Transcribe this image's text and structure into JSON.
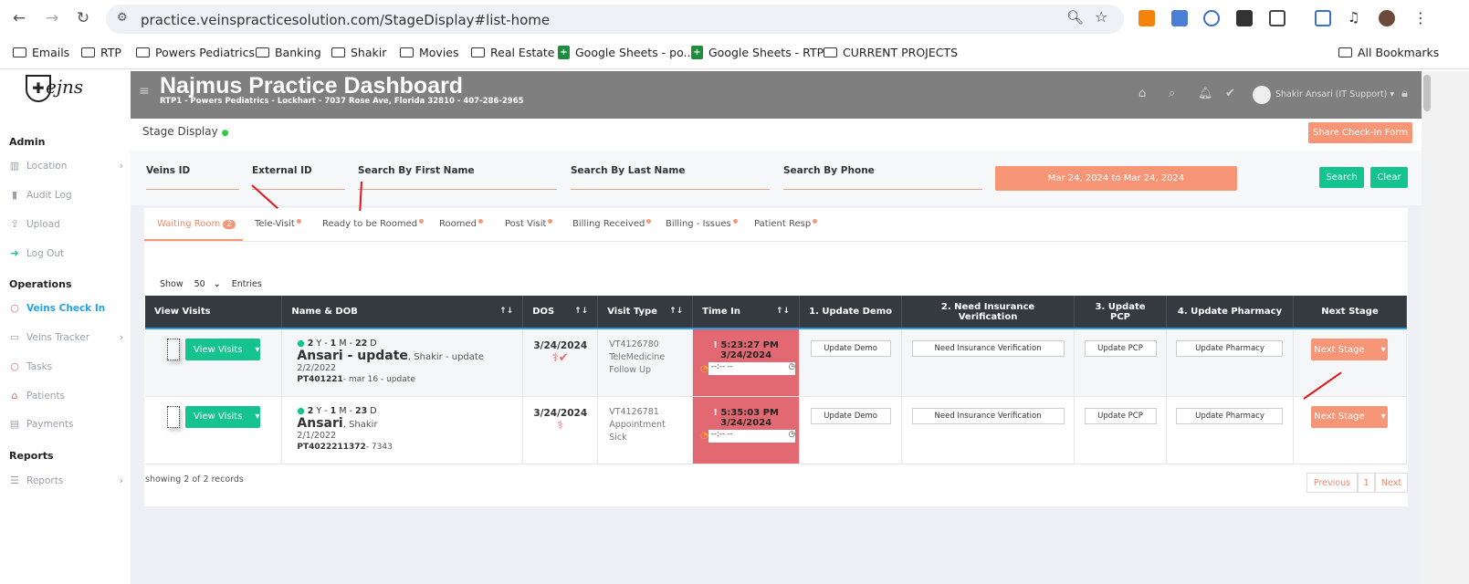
{
  "browser": {
    "url": "practice.veinspracticesolution.com/StageDisplay#list-home",
    "bookmarks": [
      "Emails",
      "RTP",
      "Powers Pediatrics",
      "Banking",
      "Shakir",
      "Movies",
      "Real Estate",
      "Google Sheets - po...",
      "Google Sheets - RTP",
      "CURRENT PROJECTS"
    ],
    "all_bookmarks": "All Bookmarks"
  },
  "sidebar": {
    "logo": "Veins",
    "sections": [
      {
        "title": "Admin",
        "items": [
          {
            "label": "Location",
            "icon": "map-icon"
          },
          {
            "label": "Audit Log",
            "icon": "clipboard-icon"
          },
          {
            "label": "Upload",
            "icon": "upload-icon"
          },
          {
            "label": "Log Out",
            "icon": "logout-icon"
          }
        ]
      },
      {
        "title": "Operations",
        "items": [
          {
            "label": "Veins Check In",
            "icon": "circle-icon",
            "active": true
          },
          {
            "label": "Veins Tracker",
            "icon": "monitor-icon"
          },
          {
            "label": "Tasks",
            "icon": "circle-icon"
          },
          {
            "label": "Patients",
            "icon": "home-medical-icon"
          },
          {
            "label": "Payments",
            "icon": "cash-register-icon"
          }
        ]
      },
      {
        "title": "Reports",
        "items": [
          {
            "label": "Reports",
            "icon": "list-icon"
          }
        ]
      }
    ]
  },
  "header": {
    "title": "Najmus Practice Dashboard",
    "subtitle": "RTP1 - Powers Pediatrics - Lockhart - 7037 Rose Ave, Florida 32810 - 407-286-2965",
    "user": "Shakir Ansari (IT Support)",
    "bg": "#7f7f7f"
  },
  "page": {
    "title": "Stage Display",
    "share_button": "Share Check-In Form"
  },
  "filters": {
    "labels": [
      "Veins ID",
      "External ID",
      "Search By First Name",
      "Search By Last Name",
      "Search By Phone"
    ],
    "date_range": "Mar 24, 2024 to Mar 24, 2024",
    "search": "Search",
    "clear": "Clear"
  },
  "tabs": [
    {
      "label": "Waiting Room",
      "count": "2",
      "active": true
    },
    {
      "label": "Tele-Visit"
    },
    {
      "label": "Ready to be Roomed"
    },
    {
      "label": "Roomed"
    },
    {
      "label": "Post Visit"
    },
    {
      "label": "Billing Received"
    },
    {
      "label": "Billing - Issues"
    },
    {
      "label": "Patient Resp"
    }
  ],
  "entries": {
    "show": "Show",
    "value": "50",
    "suffix": "Entries"
  },
  "table": {
    "columns": [
      "View Visits",
      "Name & DOB",
      "DOS",
      "Visit Type",
      "Time In",
      "1. Update Demo",
      "2. Need Insurance Verification",
      "3. Update PCP",
      "4. Update Pharmacy",
      "Next Stage"
    ],
    "rows": [
      {
        "view": "View Visits",
        "age_y": "2",
        "age_m": "1",
        "age_d": "22",
        "last": "Ansari - update",
        "first": ", Shakir - update",
        "dob": "2/2/2022",
        "pt": "PT401221",
        "pt_note": "- mar 16 - update",
        "dos": "3/24/2024",
        "checked": true,
        "visit_id": "VT4126780",
        "visit_type": "TeleMedicine",
        "visit_reason": "Follow Up",
        "time": "5:23:27 PM",
        "time_date": "3/24/2024",
        "time_input": "--:-- --",
        "demo": "Update Demo",
        "ins": "Need Insurance Verification",
        "pcp": "Update PCP",
        "pharm": "Update Pharmacy",
        "next": "Next Stage"
      },
      {
        "view": "View Visits",
        "age_y": "2",
        "age_m": "1",
        "age_d": "23",
        "last": "Ansari",
        "first": ", Shakir",
        "dob": "2/1/2022",
        "pt": "PT4022211372",
        "pt_note": "- 7343",
        "dos": "3/24/2024",
        "checked": false,
        "visit_id": "VT4126781",
        "visit_type": "Appointment",
        "visit_reason": "Sick",
        "time": "5:35:03 PM",
        "time_date": "3/24/2024",
        "time_input": "--:-- --",
        "demo": "Update Demo",
        "ins": "Need Insurance Verification",
        "pcp": "Update PCP",
        "pharm": "Update Pharmacy",
        "next": "Next Stage"
      }
    ]
  },
  "footer": {
    "showing": "showing 2 of 2 records",
    "prev": "Previous",
    "page": "1",
    "next": "Next"
  }
}
